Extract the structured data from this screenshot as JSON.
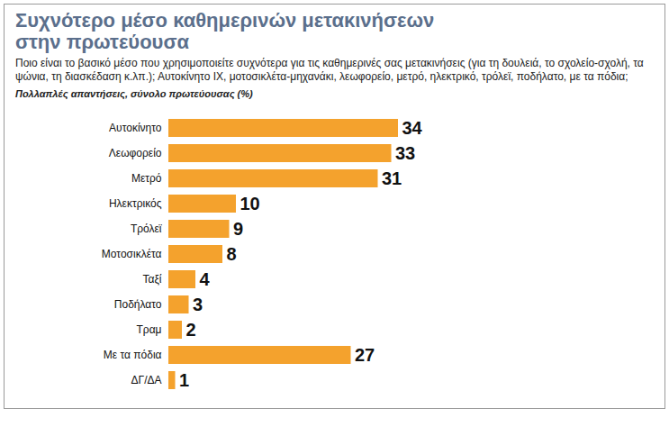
{
  "chart_data": {
    "type": "bar",
    "orientation": "horizontal",
    "title": "Συχνότερο μέσο καθημερινών μετακινήσεων στην πρωτεύουσα",
    "subtitle": "Ποιο είναι το βασικό μέσο που χρησιμοποιείτε συχνότερα για τις καθημερινές σας μετακινήσεις (για τη δουλειά, το σχολείο-σχολή, τα ψώνια, τη διασκέδαση κ.λπ.); Αυτοκίνητο ΙΧ, μοτοσικλέτα-μηχανάκι, λεωφορείο, μετρό, ηλεκτρικό, τρόλεϊ, ποδήλατο, με τα πόδια;",
    "note": "Πολλαπλές απαντήσεις, σύνολο πρωτεύουσας (%)",
    "categories": [
      "Αυτοκίνητο",
      "Λεωφορείο",
      "Μετρό",
      "Ηλεκτρικός",
      "Τρόλεϊ",
      "Μοτοσικλέτα",
      "Ταξί",
      "Ποδήλατο",
      "Τραμ",
      "Με τα πόδια",
      "ΔΓ/ΔΑ"
    ],
    "values": [
      34,
      33,
      31,
      10,
      9,
      8,
      4,
      3,
      2,
      27,
      1
    ],
    "color": "#f4a22d",
    "xlim": [
      0,
      34
    ],
    "data_labels": true,
    "tick_labels": "y",
    "grid": false
  }
}
